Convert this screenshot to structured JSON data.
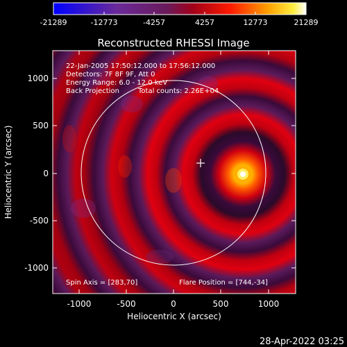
{
  "colorbar": {
    "ticks": [
      "-21289",
      "-12773",
      "-4257",
      "4257",
      "12773",
      "21289"
    ],
    "stops": [
      "#0000ff",
      "#5a2ab0",
      "#7a2a7a",
      "#b0001a",
      "#ff2a00",
      "#ff9a00",
      "#ffe000",
      "#ffffff"
    ]
  },
  "title": "Reconstructed RHESSI Image",
  "info": {
    "line1": "22-Jan-2005 17:50:12.000 to 17:56:12.000",
    "line2": "Detectors: 7F 8F 9F, Att 0",
    "line3": "Energy Range: 6.0 - 12.0 keV",
    "line4a": "Back Projection",
    "line4b": "Total counts: 2.26E+04"
  },
  "bottom": {
    "spin": "Spin Axis = [283,70]",
    "flare": "Flare Position = [744,-34]"
  },
  "axes": {
    "xlabel": "Heliocentric X (arcsec)",
    "ylabel": "Heliocentric Y (arcsec)",
    "xticks": [
      "-1000",
      "-500",
      "0",
      "500",
      "1000"
    ],
    "yticks": [
      "1000",
      "500",
      "0",
      "-500",
      "-1000"
    ]
  },
  "timestamp": "28-Apr-2022 03:25"
}
